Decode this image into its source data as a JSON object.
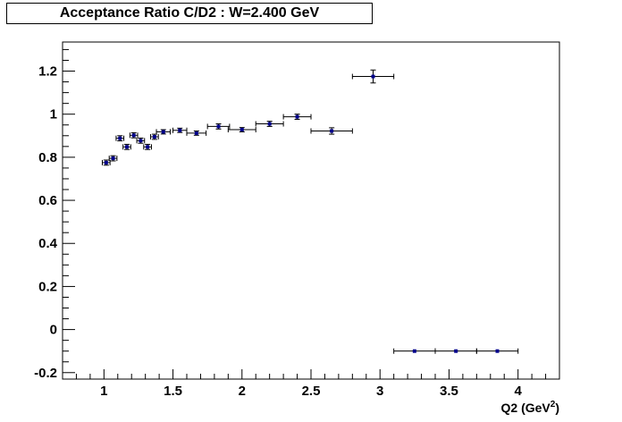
{
  "chart_data": {
    "type": "scatter",
    "title": "Acceptance Ratio C/D2 : W=2.400 GeV",
    "xlabel": "Q2 (GeV",
    "xlabel_sup": "2",
    "xlabel_suffix": ")",
    "ylabel": "",
    "xlim": [
      0.7,
      4.3
    ],
    "ylim": [
      -0.23,
      1.335
    ],
    "grid": false,
    "x_ticks": [
      "1",
      "1.5",
      "2",
      "2.5",
      "3",
      "3.5",
      "4"
    ],
    "y_ticks": [
      "-0.2",
      "0",
      "0.2",
      "0.4",
      "0.6",
      "0.8",
      "1",
      "1.2"
    ],
    "marker_color": "#00008b",
    "points": [
      {
        "x": 1.016,
        "xerr": 0.028,
        "y": 0.775,
        "yerr": 0.012
      },
      {
        "x": 1.066,
        "xerr": 0.028,
        "y": 0.795,
        "yerr": 0.012
      },
      {
        "x": 1.116,
        "xerr": 0.028,
        "y": 0.888,
        "yerr": 0.012
      },
      {
        "x": 1.166,
        "xerr": 0.028,
        "y": 0.848,
        "yerr": 0.012
      },
      {
        "x": 1.216,
        "xerr": 0.028,
        "y": 0.902,
        "yerr": 0.012
      },
      {
        "x": 1.266,
        "xerr": 0.028,
        "y": 0.877,
        "yerr": 0.012
      },
      {
        "x": 1.316,
        "xerr": 0.028,
        "y": 0.848,
        "yerr": 0.012
      },
      {
        "x": 1.366,
        "xerr": 0.028,
        "y": 0.895,
        "yerr": 0.012
      },
      {
        "x": 1.43,
        "xerr": 0.05,
        "y": 0.918,
        "yerr": 0.01
      },
      {
        "x": 1.55,
        "xerr": 0.05,
        "y": 0.925,
        "yerr": 0.01
      },
      {
        "x": 1.67,
        "xerr": 0.07,
        "y": 0.912,
        "yerr": 0.01
      },
      {
        "x": 1.83,
        "xerr": 0.08,
        "y": 0.943,
        "yerr": 0.012
      },
      {
        "x": 2.0,
        "xerr": 0.1,
        "y": 0.928,
        "yerr": 0.01
      },
      {
        "x": 2.2,
        "xerr": 0.1,
        "y": 0.955,
        "yerr": 0.012
      },
      {
        "x": 2.4,
        "xerr": 0.1,
        "y": 0.988,
        "yerr": 0.012
      },
      {
        "x": 2.65,
        "xerr": 0.15,
        "y": 0.922,
        "yerr": 0.015
      },
      {
        "x": 2.95,
        "xerr": 0.15,
        "y": 1.175,
        "yerr": 0.03
      },
      {
        "x": 3.25,
        "xerr": 0.15,
        "y": -0.1,
        "yerr": 0
      },
      {
        "x": 3.55,
        "xerr": 0.15,
        "y": -0.1,
        "yerr": 0
      },
      {
        "x": 3.85,
        "xerr": 0.15,
        "y": -0.1,
        "yerr": 0
      }
    ]
  }
}
